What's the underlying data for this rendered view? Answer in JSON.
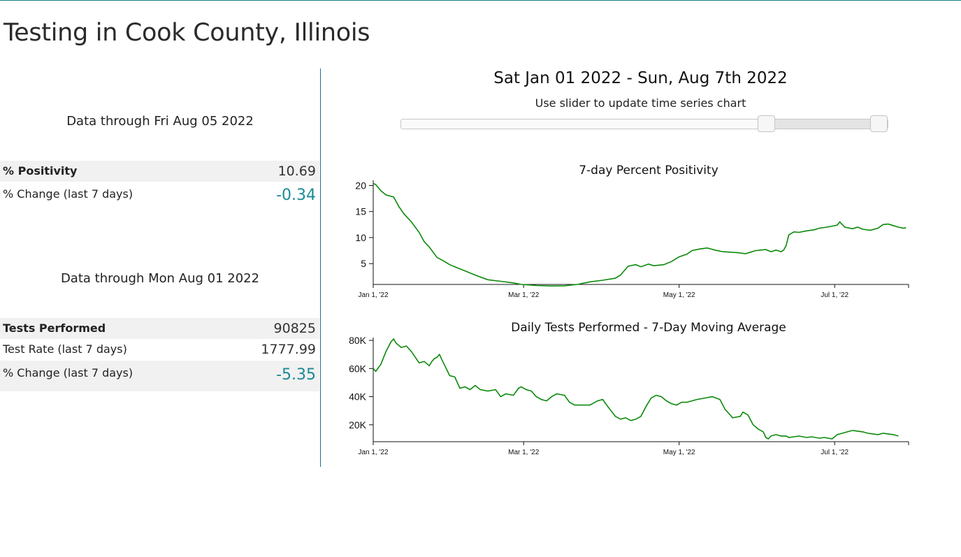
{
  "page": {
    "title": "Testing in Cook County, Illinois"
  },
  "positivity_block": {
    "data_through": "Data through Fri Aug 05 2022",
    "rows": [
      {
        "label": "% Positivity",
        "value": "10.69"
      },
      {
        "label": "% Change (last 7 days)",
        "value": "-0.34"
      }
    ]
  },
  "tests_block": {
    "data_through": "Data through Mon Aug 01 2022",
    "rows": [
      {
        "label": "Tests Performed",
        "value": "90825"
      },
      {
        "label": "Test Rate (last 7 days)",
        "value": "1777.99"
      },
      {
        "label": "% Change (last 7 days)",
        "value": "-5.35"
      }
    ]
  },
  "range": {
    "title": "Sat Jan 01 2022 - Sun, Aug 7th 2022",
    "hint": "Use slider to update time series chart",
    "slider_start": 0.75,
    "slider_end": 0.98
  },
  "colors": {
    "accent": "#1a8a95",
    "series": "#0a8a0a",
    "divider": "#1f6f94"
  },
  "chart_data": [
    {
      "type": "line",
      "title": "7-day Percent Positivity",
      "x_domain_days": [
        0,
        210
      ],
      "x_ticks": [
        {
          "day": 0,
          "label": "Jan 1, '22"
        },
        {
          "day": 59,
          "label": "Mar 1, '22"
        },
        {
          "day": 120,
          "label": "May 1, '22"
        },
        {
          "day": 181,
          "label": "Jul 1, '22"
        }
      ],
      "y_domain": [
        1,
        21
      ],
      "y_ticks": [
        {
          "value": 5,
          "label": "5"
        },
        {
          "value": 10,
          "label": "10"
        },
        {
          "value": 15,
          "label": "15"
        },
        {
          "value": 20,
          "label": "20"
        }
      ],
      "series": [
        {
          "name": "7-day Percent Positivity",
          "days": [
            0,
            1,
            3,
            5,
            8,
            10,
            12,
            15,
            18,
            20,
            22,
            25,
            28,
            30,
            33,
            36,
            40,
            45,
            50,
            55,
            58,
            61,
            64,
            70,
            75,
            80,
            85,
            90,
            95,
            97,
            100,
            103,
            105,
            108,
            110,
            112,
            114,
            117,
            120,
            123,
            125,
            128,
            131,
            134,
            137,
            140,
            143,
            146,
            148,
            150,
            152,
            154,
            156,
            158,
            160,
            161,
            162,
            163,
            165,
            167,
            170,
            173,
            175,
            178,
            180,
            182,
            183,
            185,
            188,
            190,
            192,
            195,
            198,
            200,
            202,
            204,
            206,
            208,
            209
          ],
          "values": [
            20.4,
            20.2,
            19.0,
            18.2,
            17.8,
            16.0,
            14.6,
            13.0,
            11.0,
            9.2,
            8.2,
            6.2,
            5.4,
            4.8,
            4.2,
            3.6,
            2.8,
            1.9,
            1.6,
            1.3,
            1.0,
            0.9,
            0.8,
            0.7,
            0.75,
            1.0,
            1.5,
            1.8,
            2.2,
            2.8,
            4.5,
            4.8,
            4.4,
            4.9,
            4.6,
            4.7,
            4.8,
            5.4,
            6.3,
            6.8,
            7.5,
            7.8,
            8.0,
            7.6,
            7.3,
            7.2,
            7.1,
            6.9,
            7.2,
            7.5,
            7.6,
            7.7,
            7.3,
            7.6,
            7.3,
            7.6,
            8.5,
            10.5,
            11.1,
            11.0,
            11.3,
            11.5,
            11.8,
            12.0,
            12.2,
            12.4,
            13.0,
            12.0,
            11.7,
            12.0,
            11.6,
            11.4,
            11.8,
            12.5,
            12.6,
            12.3,
            12.0,
            11.8,
            11.9
          ]
        }
      ]
    },
    {
      "type": "line",
      "title": "Daily Tests Performed - 7-Day Moving Average",
      "x_domain_days": [
        0,
        210
      ],
      "x_ticks": [
        {
          "day": 0,
          "label": "Jan 1, '22"
        },
        {
          "day": 59,
          "label": "Mar 1, '22"
        },
        {
          "day": 120,
          "label": "May 1, '22"
        },
        {
          "day": 181,
          "label": "Jul 1, '22"
        }
      ],
      "y_domain": [
        8000,
        82000
      ],
      "y_ticks": [
        {
          "value": 20000,
          "label": "20K"
        },
        {
          "value": 40000,
          "label": "40K"
        },
        {
          "value": 60000,
          "label": "60K"
        },
        {
          "value": 80000,
          "label": "80K"
        }
      ],
      "series": [
        {
          "name": "Daily Tests Performed - 7-Day Moving Average",
          "days": [
            0,
            1,
            3,
            5,
            7,
            8,
            9,
            11,
            13,
            15,
            18,
            20,
            22,
            23,
            24,
            25,
            26,
            27,
            30,
            32,
            34,
            36,
            38,
            40,
            42,
            45,
            48,
            50,
            52,
            55,
            57,
            58,
            60,
            62,
            64,
            66,
            68,
            70,
            72,
            75,
            77,
            79,
            82,
            85,
            88,
            90,
            92,
            95,
            97,
            99,
            101,
            103,
            105,
            107,
            109,
            111,
            113,
            115,
            117,
            119,
            121,
            123,
            125,
            127,
            130,
            133,
            136,
            138,
            141,
            144,
            145,
            147,
            149,
            151,
            153,
            154,
            155,
            156,
            158,
            160,
            162,
            163,
            165,
            167,
            170,
            172,
            175,
            177,
            180,
            182,
            184,
            186,
            188,
            190,
            192,
            194,
            196,
            198,
            200,
            202,
            204,
            206
          ],
          "values": [
            60000,
            58000,
            63000,
            72000,
            79000,
            81000,
            78000,
            75000,
            76000,
            72000,
            64000,
            65000,
            62000,
            65000,
            67000,
            68000,
            70000,
            66000,
            55000,
            54000,
            46000,
            47000,
            45000,
            48000,
            45000,
            44000,
            45000,
            40000,
            42000,
            41000,
            46000,
            47000,
            45000,
            44000,
            40000,
            38000,
            37000,
            40000,
            42000,
            41000,
            36000,
            34000,
            34000,
            34000,
            37000,
            38000,
            33000,
            26000,
            24000,
            25000,
            23000,
            24000,
            26000,
            33000,
            39000,
            41000,
            40000,
            37000,
            35000,
            34000,
            36000,
            36000,
            37000,
            38000,
            39000,
            40000,
            38000,
            31000,
            25000,
            26000,
            29000,
            27000,
            20000,
            17000,
            15000,
            11000,
            10000,
            12000,
            13000,
            12000,
            12000,
            11000,
            11500,
            12000,
            11000,
            11500,
            10500,
            11000,
            10000,
            13000,
            14000,
            15000,
            16000,
            15500,
            15000,
            14000,
            13500,
            13000,
            14000,
            13500,
            13000,
            12000
          ]
        }
      ]
    }
  ]
}
